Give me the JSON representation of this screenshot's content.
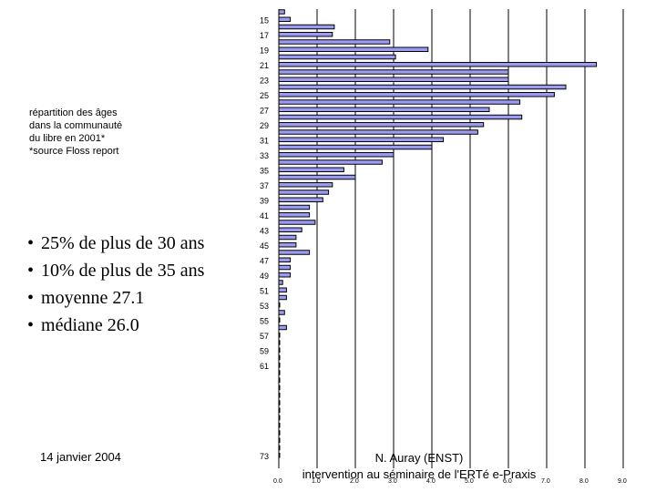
{
  "caption": {
    "line1": "répartition des âges",
    "line2": "dans la communauté",
    "line3": "du libre en 2001*",
    "line4": "*source Floss report"
  },
  "bullets": [
    "25% de plus de 30 ans",
    "10% de plus de 35 ans",
    "moyenne 27.1",
    "médiane 26.0"
  ],
  "footer": {
    "date": "14 janvier 2004",
    "author_line1": "N. Auray (ENST)",
    "author_line2": "intervention au séminaire de l'ERTé e-Praxis"
  },
  "chart_data": {
    "type": "bar",
    "orientation": "horizontal",
    "grid": true,
    "colors": {
      "bar_fill": "#9b9bf2",
      "bar_stroke": "#000000",
      "gridline": "#000000"
    },
    "xlim": [
      0,
      9.0
    ],
    "x_ticks": [
      "0.0",
      "1.0",
      "2.0",
      "3.0",
      "4.0",
      "5.0",
      "6.0",
      "7.0",
      "8.0",
      "9.0"
    ],
    "y_tick_labels": [
      "15",
      "17",
      "19",
      "21",
      "23",
      "25",
      "27",
      "29",
      "31",
      "33",
      "35",
      "37",
      "39",
      "41",
      "43",
      "45",
      "47",
      "49",
      "51",
      "53",
      "55",
      "57",
      "59",
      "61",
      "73"
    ],
    "categories": [
      "14",
      "15",
      "16",
      "17",
      "18",
      "19",
      "20",
      "21",
      "22",
      "23",
      "24",
      "25",
      "26",
      "27",
      "28",
      "29",
      "30",
      "31",
      "32",
      "33",
      "34",
      "35",
      "36",
      "37",
      "38",
      "39",
      "40",
      "41",
      "42",
      "43",
      "44",
      "45",
      "46",
      "47",
      "48",
      "49",
      "50",
      "51",
      "52",
      "53",
      "54",
      "55",
      "56",
      "57",
      "58",
      "59",
      "60",
      "61",
      "62",
      "63",
      "64",
      "65",
      "66",
      "67",
      "68",
      "69",
      "70",
      "71",
      "72",
      "73"
    ],
    "values": [
      0.15,
      0.3,
      1.45,
      1.4,
      2.9,
      3.9,
      3.05,
      8.3,
      6.0,
      6.0,
      7.5,
      7.2,
      6.3,
      5.5,
      6.35,
      5.35,
      5.2,
      4.3,
      4.0,
      3.0,
      2.7,
      1.7,
      2.0,
      1.4,
      1.3,
      1.15,
      0.8,
      0.8,
      0.95,
      0.6,
      0.45,
      0.45,
      0.8,
      0.3,
      0.3,
      0.3,
      0.1,
      0.2,
      0.2,
      0.0,
      0.15,
      0.0,
      0.2,
      0.0,
      0.0,
      0.0,
      0.0,
      0.0,
      0.0,
      0.0,
      0.0,
      0.0,
      0.0,
      0.0,
      0.0,
      0.0,
      0.0,
      0.0,
      0.0,
      0.0
    ],
    "xlabel": "",
    "ylabel": "",
    "title": ""
  }
}
